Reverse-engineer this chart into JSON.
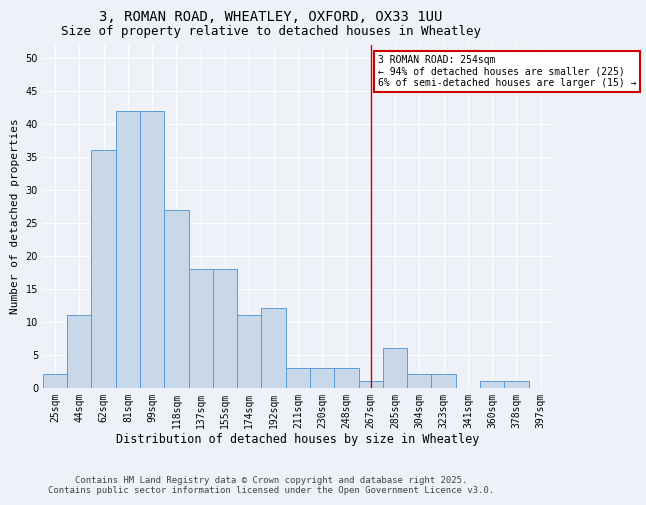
{
  "title": "3, ROMAN ROAD, WHEATLEY, OXFORD, OX33 1UU",
  "subtitle": "Size of property relative to detached houses in Wheatley",
  "xlabel": "Distribution of detached houses by size in Wheatley",
  "ylabel": "Number of detached properties",
  "bar_color": "#c8d8e8",
  "bar_edge_color": "#5b9bd5",
  "categories": [
    "25sqm",
    "44sqm",
    "62sqm",
    "81sqm",
    "99sqm",
    "118sqm",
    "137sqm",
    "155sqm",
    "174sqm",
    "192sqm",
    "211sqm",
    "230sqm",
    "248sqm",
    "267sqm",
    "285sqm",
    "304sqm",
    "323sqm",
    "341sqm",
    "360sqm",
    "378sqm",
    "397sqm"
  ],
  "values": [
    2,
    11,
    36,
    42,
    42,
    27,
    18,
    18,
    11,
    12,
    3,
    3,
    3,
    1,
    6,
    2,
    2,
    0,
    1,
    1,
    0
  ],
  "ylim": [
    0,
    52
  ],
  "yticks": [
    0,
    5,
    10,
    15,
    20,
    25,
    30,
    35,
    40,
    45,
    50
  ],
  "vline_x_idx": 13.0,
  "vline_color": "#cc0000",
  "annotation_text": "3 ROMAN ROAD: 254sqm\n← 94% of detached houses are smaller (225)\n6% of semi-detached houses are larger (15) →",
  "annotation_box_color": "#ffffff",
  "annotation_edge_color": "#cc0000",
  "footer_line1": "Contains HM Land Registry data © Crown copyright and database right 2025.",
  "footer_line2": "Contains public sector information licensed under the Open Government Licence v3.0.",
  "background_color": "#eef2f8",
  "grid_color": "#ffffff",
  "title_fontsize": 10,
  "subtitle_fontsize": 9,
  "tick_fontsize": 7,
  "ylabel_fontsize": 8,
  "xlabel_fontsize": 8.5,
  "footer_fontsize": 6.5
}
